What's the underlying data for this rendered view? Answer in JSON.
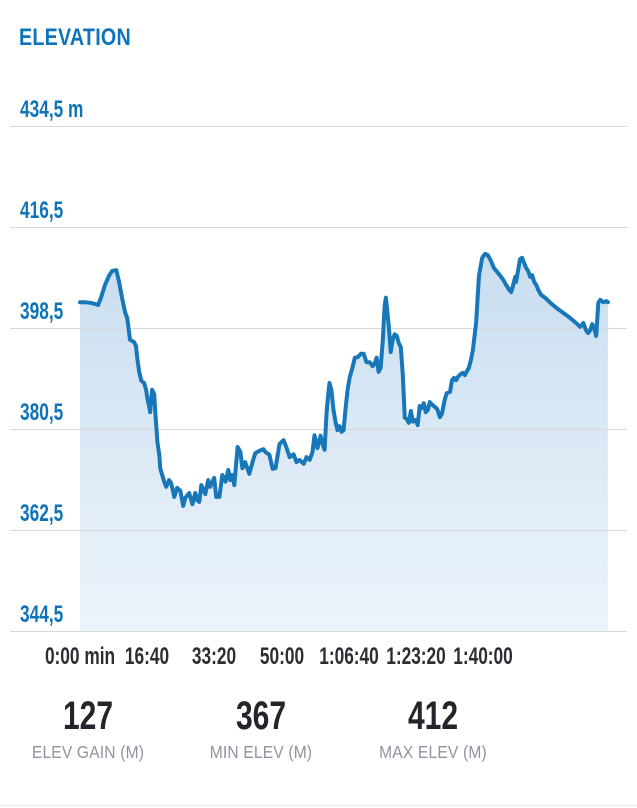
{
  "header": {
    "title": "ELEVATION"
  },
  "stats": [
    {
      "id": "elev-gain",
      "value": "127",
      "label": "ELEV GAIN (M)"
    },
    {
      "id": "min-elev",
      "value": "367",
      "label": "MIN ELEV (M)"
    },
    {
      "id": "max-elev",
      "value": "412",
      "label": "MAX ELEV (M)"
    }
  ],
  "colors": {
    "accent_blue": "#0c74bc",
    "line_blue": "#1777b9",
    "fill_top": "#c9def0",
    "fill_bottom": "#edf4fb",
    "gridline": "#d8d8d8",
    "x_label": "#2b2e32",
    "stat_value": "#222529",
    "stat_label": "#8e949e",
    "divider": "#ececec"
  },
  "chart_data": {
    "type": "area",
    "title": "ELEVATION",
    "xlabel": "time",
    "ylabel": "elevation",
    "x_unit": "min",
    "y_unit": "m",
    "xlim": [
      0,
      131.8
    ],
    "ylim": [
      344.5,
      434.5
    ],
    "grid": "horizontal",
    "legend": "none",
    "x_ticks": [
      {
        "t": 0,
        "label": "0:00 min"
      },
      {
        "t": 16.667,
        "label": "16:40"
      },
      {
        "t": 33.333,
        "label": "33:20"
      },
      {
        "t": 50,
        "label": "50:00"
      },
      {
        "t": 66.667,
        "label": "1:06:40"
      },
      {
        "t": 83.333,
        "label": "1:23:20"
      },
      {
        "t": 100,
        "label": "1:40:00"
      }
    ],
    "y_ticks": [
      {
        "v": 434.5,
        "label": "434,5 m"
      },
      {
        "v": 416.5,
        "label": "416,5"
      },
      {
        "v": 398.5,
        "label": "398,5"
      },
      {
        "v": 380.5,
        "label": "380,5"
      },
      {
        "v": 362.5,
        "label": "362,5"
      },
      {
        "v": 344.5,
        "label": "344,5"
      }
    ],
    "series": [
      {
        "name": "elevation",
        "points": [
          [
            0,
            403.1
          ],
          [
            1.2,
            403.1
          ],
          [
            2.5,
            403.0
          ],
          [
            3.7,
            402.8
          ],
          [
            4.5,
            402.6
          ],
          [
            5.2,
            403.9
          ],
          [
            6.2,
            406.2
          ],
          [
            7.2,
            407.8
          ],
          [
            8.0,
            408.7
          ],
          [
            9.0,
            408.8
          ],
          [
            9.7,
            406.7
          ],
          [
            10.4,
            404.0
          ],
          [
            11.2,
            401.3
          ],
          [
            11.7,
            400.3
          ],
          [
            12.4,
            396.4
          ],
          [
            13.4,
            396.0
          ],
          [
            13.9,
            395.3
          ],
          [
            14.2,
            393.2
          ],
          [
            14.7,
            390.7
          ],
          [
            15.2,
            389.1
          ],
          [
            15.9,
            388.7
          ],
          [
            16.4,
            387.5
          ],
          [
            16.7,
            386.0
          ],
          [
            17.2,
            384.4
          ],
          [
            17.4,
            383.5
          ],
          [
            17.9,
            387.5
          ],
          [
            18.4,
            386.7
          ],
          [
            18.7,
            383.2
          ],
          [
            19.2,
            378.2
          ],
          [
            19.7,
            375.7
          ],
          [
            19.9,
            373.5
          ],
          [
            20.4,
            372.3
          ],
          [
            20.9,
            371.1
          ],
          [
            21.4,
            370.2
          ],
          [
            22.1,
            371.4
          ],
          [
            22.6,
            370.9
          ],
          [
            23.4,
            368.4
          ],
          [
            24.1,
            370.0
          ],
          [
            24.9,
            369.5
          ],
          [
            25.6,
            366.8
          ],
          [
            26.1,
            368.2
          ],
          [
            27.1,
            369.1
          ],
          [
            27.9,
            367.1
          ],
          [
            28.6,
            369.1
          ],
          [
            29.1,
            367.8
          ],
          [
            29.6,
            367.5
          ],
          [
            30.1,
            370.5
          ],
          [
            31.1,
            368.9
          ],
          [
            31.8,
            371.4
          ],
          [
            32.3,
            370.2
          ],
          [
            33.3,
            371.8
          ],
          [
            33.8,
            368.4
          ],
          [
            34.6,
            368.4
          ],
          [
            35.3,
            372.3
          ],
          [
            36.1,
            371.1
          ],
          [
            36.8,
            373.2
          ],
          [
            37.3,
            371.4
          ],
          [
            37.8,
            372.3
          ],
          [
            38.3,
            370.5
          ],
          [
            39.1,
            377.3
          ],
          [
            39.8,
            376.4
          ],
          [
            40.3,
            373.5
          ],
          [
            41.0,
            374.6
          ],
          [
            42.0,
            372.5
          ],
          [
            42.8,
            374.6
          ],
          [
            43.5,
            376.2
          ],
          [
            44.5,
            376.6
          ],
          [
            45.5,
            376.9
          ],
          [
            46.0,
            376.4
          ],
          [
            47.0,
            375.9
          ],
          [
            47.8,
            373.4
          ],
          [
            48.5,
            373.5
          ],
          [
            49.5,
            377.8
          ],
          [
            50.5,
            378.5
          ],
          [
            51.2,
            377.3
          ],
          [
            52.0,
            375.5
          ],
          [
            53.0,
            376.0
          ],
          [
            53.7,
            374.6
          ],
          [
            54.5,
            375.0
          ],
          [
            55.5,
            374.3
          ],
          [
            56.2,
            375.5
          ],
          [
            57.0,
            375.0
          ],
          [
            57.7,
            376.4
          ],
          [
            58.2,
            379.4
          ],
          [
            58.9,
            377.1
          ],
          [
            59.7,
            379.3
          ],
          [
            60.2,
            377.8
          ],
          [
            60.7,
            376.8
          ],
          [
            61.2,
            383.5
          ],
          [
            61.7,
            387.5
          ],
          [
            61.9,
            388.7
          ],
          [
            62.4,
            387.3
          ],
          [
            62.9,
            383.9
          ],
          [
            63.4,
            381.8
          ],
          [
            63.9,
            380.3
          ],
          [
            64.4,
            381.0
          ],
          [
            64.9,
            380.0
          ],
          [
            65.4,
            380.3
          ],
          [
            65.9,
            384.2
          ],
          [
            66.4,
            387.5
          ],
          [
            66.9,
            389.6
          ],
          [
            67.7,
            391.7
          ],
          [
            68.2,
            393.2
          ],
          [
            68.9,
            393.3
          ],
          [
            69.7,
            393.9
          ],
          [
            70.4,
            393.9
          ],
          [
            71.1,
            392.4
          ],
          [
            71.9,
            392.4
          ],
          [
            72.6,
            391.7
          ],
          [
            73.1,
            392.1
          ],
          [
            73.6,
            393.2
          ],
          [
            74.1,
            390.7
          ],
          [
            74.6,
            391.4
          ],
          [
            75.1,
            396.0
          ],
          [
            75.6,
            402.6
          ],
          [
            75.9,
            403.9
          ],
          [
            76.6,
            399.0
          ],
          [
            77.1,
            394.2
          ],
          [
            77.6,
            396.4
          ],
          [
            78.1,
            397.4
          ],
          [
            78.6,
            397.1
          ],
          [
            79.1,
            395.8
          ],
          [
            79.6,
            395.1
          ],
          [
            80.1,
            390.1
          ],
          [
            80.6,
            382.5
          ],
          [
            81.1,
            382.3
          ],
          [
            81.6,
            381.6
          ],
          [
            82.1,
            383.7
          ],
          [
            82.6,
            381.8
          ],
          [
            83.3,
            382.1
          ],
          [
            83.8,
            381.2
          ],
          [
            84.3,
            384.6
          ],
          [
            84.8,
            384.2
          ],
          [
            85.3,
            385.1
          ],
          [
            85.8,
            383.5
          ],
          [
            86.3,
            383.9
          ],
          [
            86.8,
            385.3
          ],
          [
            87.3,
            384.9
          ],
          [
            87.8,
            384.6
          ],
          [
            88.6,
            384.1
          ],
          [
            89.3,
            382.6
          ],
          [
            89.8,
            383.2
          ],
          [
            90.5,
            385.7
          ],
          [
            91.0,
            386.9
          ],
          [
            91.8,
            387.1
          ],
          [
            92.3,
            389.2
          ],
          [
            92.8,
            389.6
          ],
          [
            93.3,
            389.2
          ],
          [
            93.8,
            389.8
          ],
          [
            94.5,
            390.3
          ],
          [
            95.0,
            390.5
          ],
          [
            95.5,
            390.1
          ],
          [
            96.0,
            390.8
          ],
          [
            96.5,
            391.4
          ],
          [
            97.0,
            392.8
          ],
          [
            97.5,
            394.6
          ],
          [
            98.3,
            399.4
          ],
          [
            99.0,
            407.9
          ],
          [
            99.8,
            411.0
          ],
          [
            100.5,
            411.7
          ],
          [
            101.2,
            411.5
          ],
          [
            102.0,
            410.4
          ],
          [
            102.7,
            409.2
          ],
          [
            103.5,
            408.5
          ],
          [
            104.2,
            407.9
          ],
          [
            105.0,
            407.1
          ],
          [
            105.7,
            406.2
          ],
          [
            106.5,
            405.3
          ],
          [
            107.0,
            404.9
          ],
          [
            107.5,
            406.2
          ],
          [
            108.0,
            407.6
          ],
          [
            108.2,
            406.7
          ],
          [
            108.7,
            408.8
          ],
          [
            109.2,
            410.8
          ],
          [
            109.7,
            411.0
          ],
          [
            110.2,
            410.1
          ],
          [
            110.7,
            409.2
          ],
          [
            111.2,
            408.7
          ],
          [
            111.7,
            407.6
          ],
          [
            112.2,
            407.9
          ],
          [
            112.7,
            406.7
          ],
          [
            113.2,
            406.2
          ],
          [
            113.7,
            405.3
          ],
          [
            114.4,
            404.4
          ],
          [
            115.4,
            403.9
          ],
          [
            116.7,
            403.0
          ],
          [
            118.2,
            402.1
          ],
          [
            119.9,
            401.2
          ],
          [
            121.6,
            400.3
          ],
          [
            123.1,
            399.4
          ],
          [
            124.1,
            398.7
          ],
          [
            124.9,
            399.4
          ],
          [
            125.6,
            398.0
          ],
          [
            126.1,
            397.6
          ],
          [
            126.6,
            398.1
          ],
          [
            127.1,
            399.2
          ],
          [
            127.6,
            398.5
          ],
          [
            128.1,
            397.1
          ],
          [
            128.6,
            403.0
          ],
          [
            129.1,
            403.5
          ],
          [
            129.9,
            403.1
          ],
          [
            130.6,
            403.3
          ],
          [
            131.0,
            403.1
          ]
        ]
      }
    ]
  }
}
